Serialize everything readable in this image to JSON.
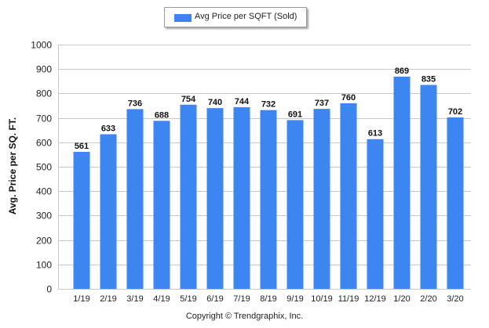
{
  "chart_data": {
    "type": "bar",
    "title": "",
    "xlabel": "",
    "ylabel": "Avg. Price per SQ. FT.",
    "ylim": [
      0,
      1000
    ],
    "yticks": [
      0,
      100,
      200,
      300,
      400,
      500,
      600,
      700,
      800,
      900,
      1000
    ],
    "grid": true,
    "legend_position": "top-center",
    "categories": [
      "1/19",
      "2/19",
      "3/19",
      "4/19",
      "5/19",
      "6/19",
      "7/19",
      "8/19",
      "9/19",
      "10/19",
      "11/19",
      "12/19",
      "1/20",
      "2/20",
      "3/20"
    ],
    "series": [
      {
        "name": "Avg Price per SQFT (Sold)",
        "color": "#3d85f0",
        "values": [
          561,
          633,
          736,
          688,
          754,
          740,
          744,
          732,
          691,
          737,
          760,
          613,
          869,
          835,
          702
        ]
      }
    ]
  },
  "footer": "Copyright © Trendgraphix, Inc."
}
